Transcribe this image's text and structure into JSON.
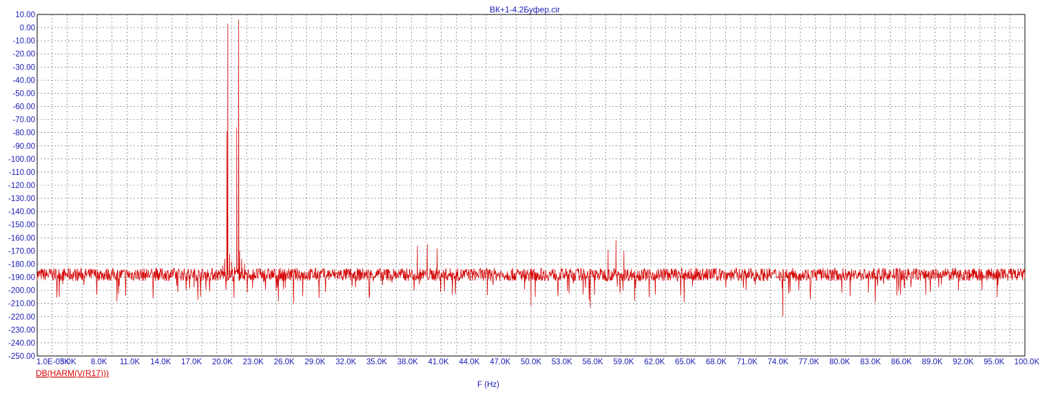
{
  "chart_data": {
    "type": "line",
    "title": "ВК+1-4.2Буфер.cir",
    "xlabel": "F (Hz)",
    "ylabel": "",
    "xlim": [
      0.001,
      100000
    ],
    "ylim": [
      -250,
      10
    ],
    "grid": true,
    "y_ticks": [
      "10.00",
      "0.00",
      "-10.00",
      "-20.00",
      "-30.00",
      "-40.00",
      "-50.00",
      "-60.00",
      "-70.00",
      "-80.00",
      "-90.00",
      "-100.00",
      "-110.00",
      "-120.00",
      "-130.00",
      "-140.00",
      "-150.00",
      "-160.00",
      "-170.00",
      "-180.00",
      "-190.00",
      "-200.00",
      "-210.00",
      "-220.00",
      "-230.00",
      "-240.00",
      "-250.00"
    ],
    "x_ticks": [
      "1.0E-03K",
      "5.0K",
      "8.0K",
      "11.0K",
      "14.0K",
      "17.0K",
      "20.0K",
      "23.0K",
      "26.0K",
      "29.0K",
      "32.0K",
      "35.0K",
      "38.0K",
      "41.0K",
      "44.0K",
      "47.0K",
      "50.0K",
      "53.0K",
      "56.0K",
      "59.0K",
      "62.0K",
      "65.0K",
      "68.0K",
      "71.0K",
      "74.0K",
      "77.0K",
      "80.0K",
      "83.0K",
      "86.0K",
      "89.0K",
      "92.0K",
      "95.0K",
      "100.0K"
    ],
    "series": [
      {
        "name": "DB(HARM(V(R17)))",
        "color": "#d40000",
        "noise_floor": -188,
        "x": [
          0.001,
          18000,
          18800,
          19000,
          19200,
          19300,
          19500,
          19700,
          20000,
          20200,
          20400,
          20500,
          20700,
          21000,
          22000,
          38500,
          39500,
          40500,
          50000,
          56000,
          57800,
          58600,
          59400,
          60500,
          75500,
          100000
        ],
        "y": [
          -188,
          -186,
          -181,
          -176,
          -79,
          3,
          -172,
          -178,
          -182,
          -76,
          6,
          -170,
          -176,
          -180,
          -186,
          -166,
          -165,
          -168,
          -212,
          -213,
          -169,
          -162,
          -170,
          -208,
          -220,
          -188
        ]
      }
    ]
  }
}
